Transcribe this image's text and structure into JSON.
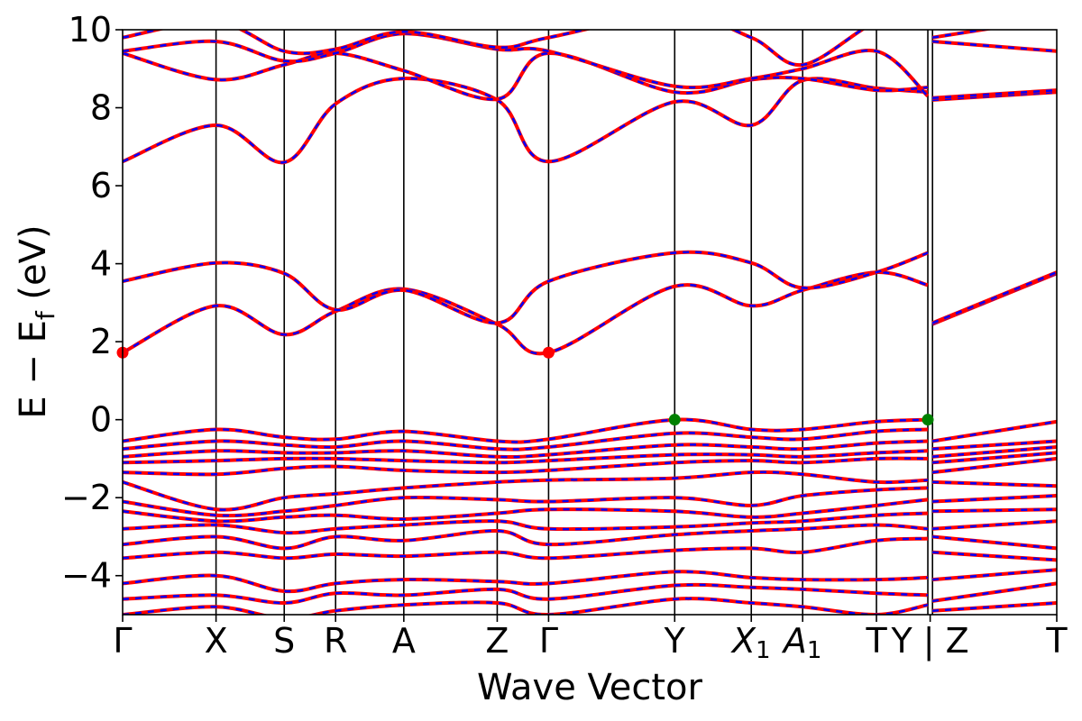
{
  "chart_data": {
    "type": "line",
    "xlabel": "Wave Vector",
    "ylabel": "E − E_f (eV)",
    "ylabel_parts": {
      "main": "E − E",
      "sub": "f",
      "unit": " (eV)"
    },
    "ylim": [
      -5,
      10
    ],
    "yticks": [
      "−4",
      "−2",
      "0",
      "2",
      "4",
      "6",
      "8",
      "10"
    ],
    "ytick_values": [
      -4,
      -2,
      0,
      2,
      4,
      6,
      8,
      10
    ],
    "grid": false,
    "legend": "none",
    "high_symmetry_points": [
      {
        "label": "Γ",
        "k": 0.0
      },
      {
        "label": "X",
        "k": 0.1
      },
      {
        "label": "S",
        "k": 0.173
      },
      {
        "label": "R",
        "k": 0.228
      },
      {
        "label": "A",
        "k": 0.301
      },
      {
        "label": "Z",
        "k": 0.401
      },
      {
        "label": "Γ",
        "k": 0.456
      },
      {
        "label": "Y",
        "k": 0.591
      },
      {
        "label": "X",
        "sub": "1",
        "k": 0.673
      },
      {
        "label": "A",
        "sub": "1",
        "k": 0.728
      },
      {
        "label": "T",
        "k": 0.807
      },
      {
        "label": "Y",
        "k": 0.862
      },
      {
        "label": "Z",
        "k": 0.867
      },
      {
        "label": "T",
        "k": 1.0
      }
    ],
    "xtick_text": [
      "Γ",
      "X",
      "S",
      "R",
      "A",
      "Z",
      "Γ",
      "Y",
      "X",
      "A",
      "T",
      "Y | Z",
      "T"
    ],
    "break_k": 0.862,
    "series_colors": {
      "line_a": "#ff0000",
      "line_b": "#0000ff"
    },
    "markers": [
      {
        "k": 0.0,
        "E": 1.72,
        "color": "#ff0000",
        "note": "CBM"
      },
      {
        "k": 0.456,
        "E": 1.72,
        "color": "#ff0000",
        "note": "CBM"
      },
      {
        "k": 0.591,
        "E": 0.0,
        "color": "#008000",
        "note": "VBM"
      },
      {
        "k": 0.862,
        "E": 0.0,
        "color": "#008000",
        "note": "VBM"
      }
    ],
    "bands": [
      {
        "k": [
          0,
          0.1,
          0.173,
          0.228,
          0.301,
          0.401,
          0.456,
          0.591,
          0.673,
          0.728,
          0.807,
          0.862,
          0.867,
          1.0
        ],
        "E": [
          1.72,
          2.92,
          2.18,
          2.78,
          3.35,
          2.45,
          1.72,
          3.42,
          2.92,
          3.32,
          3.78,
          3.45,
          2.45,
          3.75
        ]
      },
      {
        "k": [
          0,
          0.1,
          0.173,
          0.228,
          0.301,
          0.401,
          0.456,
          0.591,
          0.673,
          0.728,
          0.807,
          0.862,
          0.867,
          1.0
        ],
        "E": [
          3.55,
          4.02,
          3.75,
          2.82,
          3.32,
          2.48,
          3.55,
          4.28,
          4.02,
          3.38,
          3.78,
          4.28,
          2.48,
          3.78
        ]
      },
      {
        "k": [
          0,
          0.1,
          0.173,
          0.228,
          0.301,
          0.401,
          0.456,
          0.591,
          0.673,
          0.728,
          0.807,
          0.862,
          0.867,
          1.0
        ],
        "E": [
          6.62,
          7.55,
          6.6,
          8.1,
          8.75,
          8.2,
          6.62,
          8.15,
          7.55,
          8.7,
          8.5,
          8.4,
          8.2,
          8.4
        ]
      },
      {
        "k": [
          0,
          0.1,
          0.173,
          0.228,
          0.301,
          0.401,
          0.456,
          0.591,
          0.673,
          0.728,
          0.807,
          0.862,
          0.867,
          1.0
        ],
        "E": [
          9.4,
          8.72,
          9.1,
          9.4,
          8.95,
          8.22,
          9.4,
          8.4,
          8.72,
          8.75,
          8.45,
          8.52,
          8.25,
          8.45
        ]
      },
      {
        "k": [
          0,
          0.1,
          0.173,
          0.228,
          0.301,
          0.401,
          0.456,
          0.591,
          0.673,
          0.728,
          0.807,
          0.862,
          0.867,
          1.0
        ],
        "E": [
          9.45,
          9.7,
          9.2,
          9.4,
          9.9,
          9.5,
          9.45,
          8.55,
          8.75,
          9.0,
          9.45,
          8.3,
          9.7,
          9.45
        ]
      },
      {
        "k": [
          0,
          0.1,
          0.173,
          0.228,
          0.301,
          0.401,
          0.456,
          0.591,
          0.673,
          0.728,
          0.807,
          0.862,
          0.867,
          1.0
        ],
        "E": [
          9.8,
          10.2,
          9.45,
          9.5,
          9.95,
          9.55,
          9.8,
          10.4,
          9.8,
          9.1,
          10.2,
          10.3,
          9.8,
          10.3
        ]
      },
      {
        "k": [
          0,
          0.1,
          0.173,
          0.228,
          0.301,
          0.401,
          0.456,
          0.591,
          0.673,
          0.728,
          0.807,
          0.862,
          0.867,
          1.0
        ],
        "E": [
          -0.55,
          -0.25,
          -0.45,
          -0.5,
          -0.3,
          -0.55,
          -0.5,
          0.0,
          -0.25,
          -0.25,
          -0.05,
          0.0,
          -0.55,
          -0.05
        ]
      },
      {
        "k": [
          0,
          0.1,
          0.173,
          0.228,
          0.301,
          0.401,
          0.456,
          0.591,
          0.673,
          0.728,
          0.807,
          0.862,
          0.867,
          1.0
        ],
        "E": [
          -0.75,
          -0.55,
          -0.65,
          -0.7,
          -0.55,
          -0.75,
          -0.7,
          -0.35,
          -0.45,
          -0.5,
          -0.3,
          -0.25,
          -0.75,
          -0.55
        ]
      },
      {
        "k": [
          0,
          0.1,
          0.173,
          0.228,
          0.301,
          0.401,
          0.456,
          0.591,
          0.673,
          0.728,
          0.807,
          0.862,
          0.867,
          1.0
        ],
        "E": [
          -0.95,
          -0.8,
          -0.85,
          -0.85,
          -0.8,
          -0.95,
          -0.9,
          -0.65,
          -0.7,
          -0.75,
          -0.6,
          -0.55,
          -0.95,
          -0.7
        ]
      },
      {
        "k": [
          0,
          0.1,
          0.173,
          0.228,
          0.301,
          0.401,
          0.456,
          0.591,
          0.673,
          0.728,
          0.807,
          0.862,
          0.867,
          1.0
        ],
        "E": [
          -1.1,
          -1.05,
          -1.0,
          -1.0,
          -1.05,
          -1.1,
          -1.05,
          -0.9,
          -0.9,
          -0.95,
          -0.85,
          -0.8,
          -1.1,
          -0.85
        ]
      },
      {
        "k": [
          0,
          0.1,
          0.173,
          0.228,
          0.301,
          0.401,
          0.456,
          0.591,
          0.673,
          0.728,
          0.807,
          0.862,
          0.867,
          1.0
        ],
        "E": [
          -1.35,
          -1.4,
          -1.25,
          -1.2,
          -1.3,
          -1.35,
          -1.3,
          -1.1,
          -1.05,
          -1.1,
          -1.0,
          -1.0,
          -1.35,
          -1.0
        ]
      },
      {
        "k": [
          0,
          0.1,
          0.173,
          0.228,
          0.301,
          0.401,
          0.456,
          0.591,
          0.673,
          0.728,
          0.807,
          0.862,
          0.867,
          1.0
        ],
        "E": [
          -1.6,
          -2.3,
          -2.0,
          -1.9,
          -1.75,
          -1.6,
          -1.55,
          -1.5,
          -1.35,
          -1.4,
          -1.6,
          -1.55,
          -1.6,
          -1.7
        ]
      },
      {
        "k": [
          0,
          0.1,
          0.173,
          0.228,
          0.301,
          0.401,
          0.456,
          0.591,
          0.673,
          0.728,
          0.807,
          0.862,
          0.867,
          1.0
        ],
        "E": [
          -2.1,
          -2.45,
          -2.35,
          -2.2,
          -2.0,
          -2.05,
          -2.1,
          -2.0,
          -2.2,
          -1.95,
          -1.8,
          -1.75,
          -2.1,
          -1.95
        ]
      },
      {
        "k": [
          0,
          0.1,
          0.173,
          0.228,
          0.301,
          0.401,
          0.456,
          0.591,
          0.673,
          0.728,
          0.807,
          0.862,
          0.867,
          1.0
        ],
        "E": [
          -2.35,
          -2.6,
          -2.5,
          -2.45,
          -2.55,
          -2.4,
          -2.3,
          -2.35,
          -2.5,
          -2.4,
          -2.2,
          -2.05,
          -2.35,
          -2.3
        ]
      },
      {
        "k": [
          0,
          0.1,
          0.173,
          0.228,
          0.301,
          0.401,
          0.456,
          0.591,
          0.673,
          0.728,
          0.807,
          0.862,
          0.867,
          1.0
        ],
        "E": [
          -2.8,
          -2.7,
          -2.9,
          -2.8,
          -2.7,
          -2.6,
          -2.8,
          -2.75,
          -2.65,
          -2.6,
          -2.45,
          -2.4,
          -2.8,
          -2.6
        ]
      },
      {
        "k": [
          0,
          0.1,
          0.173,
          0.228,
          0.301,
          0.401,
          0.456,
          0.591,
          0.673,
          0.728,
          0.807,
          0.862,
          0.867,
          1.0
        ],
        "E": [
          -3.2,
          -3.0,
          -3.3,
          -3.0,
          -3.1,
          -2.85,
          -3.2,
          -2.95,
          -2.85,
          -2.8,
          -2.7,
          -2.8,
          -3.0,
          -3.3
        ]
      },
      {
        "k": [
          0,
          0.1,
          0.173,
          0.228,
          0.301,
          0.401,
          0.456,
          0.591,
          0.673,
          0.728,
          0.807,
          0.862,
          0.867,
          1.0
        ],
        "E": [
          -3.55,
          -3.4,
          -3.55,
          -3.45,
          -3.5,
          -3.4,
          -3.55,
          -3.35,
          -3.3,
          -3.4,
          -3.1,
          -3.05,
          -3.4,
          -3.6
        ]
      },
      {
        "k": [
          0,
          0.1,
          0.173,
          0.228,
          0.301,
          0.401,
          0.456,
          0.591,
          0.673,
          0.728,
          0.807,
          0.862,
          0.867,
          1.0
        ],
        "E": [
          -4.2,
          -4.0,
          -4.4,
          -4.2,
          -4.1,
          -4.15,
          -4.2,
          -3.9,
          -4.05,
          -4.1,
          -4.1,
          -4.05,
          -4.1,
          -3.85
        ]
      },
      {
        "k": [
          0,
          0.1,
          0.173,
          0.228,
          0.301,
          0.401,
          0.456,
          0.591,
          0.673,
          0.728,
          0.807,
          0.862,
          0.867,
          1.0
        ],
        "E": [
          -4.6,
          -4.5,
          -4.7,
          -4.45,
          -4.5,
          -4.35,
          -4.6,
          -4.25,
          -4.3,
          -4.35,
          -4.45,
          -4.5,
          -4.65,
          -4.2
        ]
      },
      {
        "k": [
          0,
          0.1,
          0.173,
          0.228,
          0.301,
          0.401,
          0.456,
          0.591,
          0.673,
          0.728,
          0.807,
          0.862,
          0.867,
          1.0
        ],
        "E": [
          -5.0,
          -4.8,
          -5.1,
          -4.9,
          -4.75,
          -4.7,
          -5.0,
          -4.6,
          -4.7,
          -4.8,
          -5.0,
          -4.75,
          -4.9,
          -4.7
        ]
      }
    ]
  }
}
